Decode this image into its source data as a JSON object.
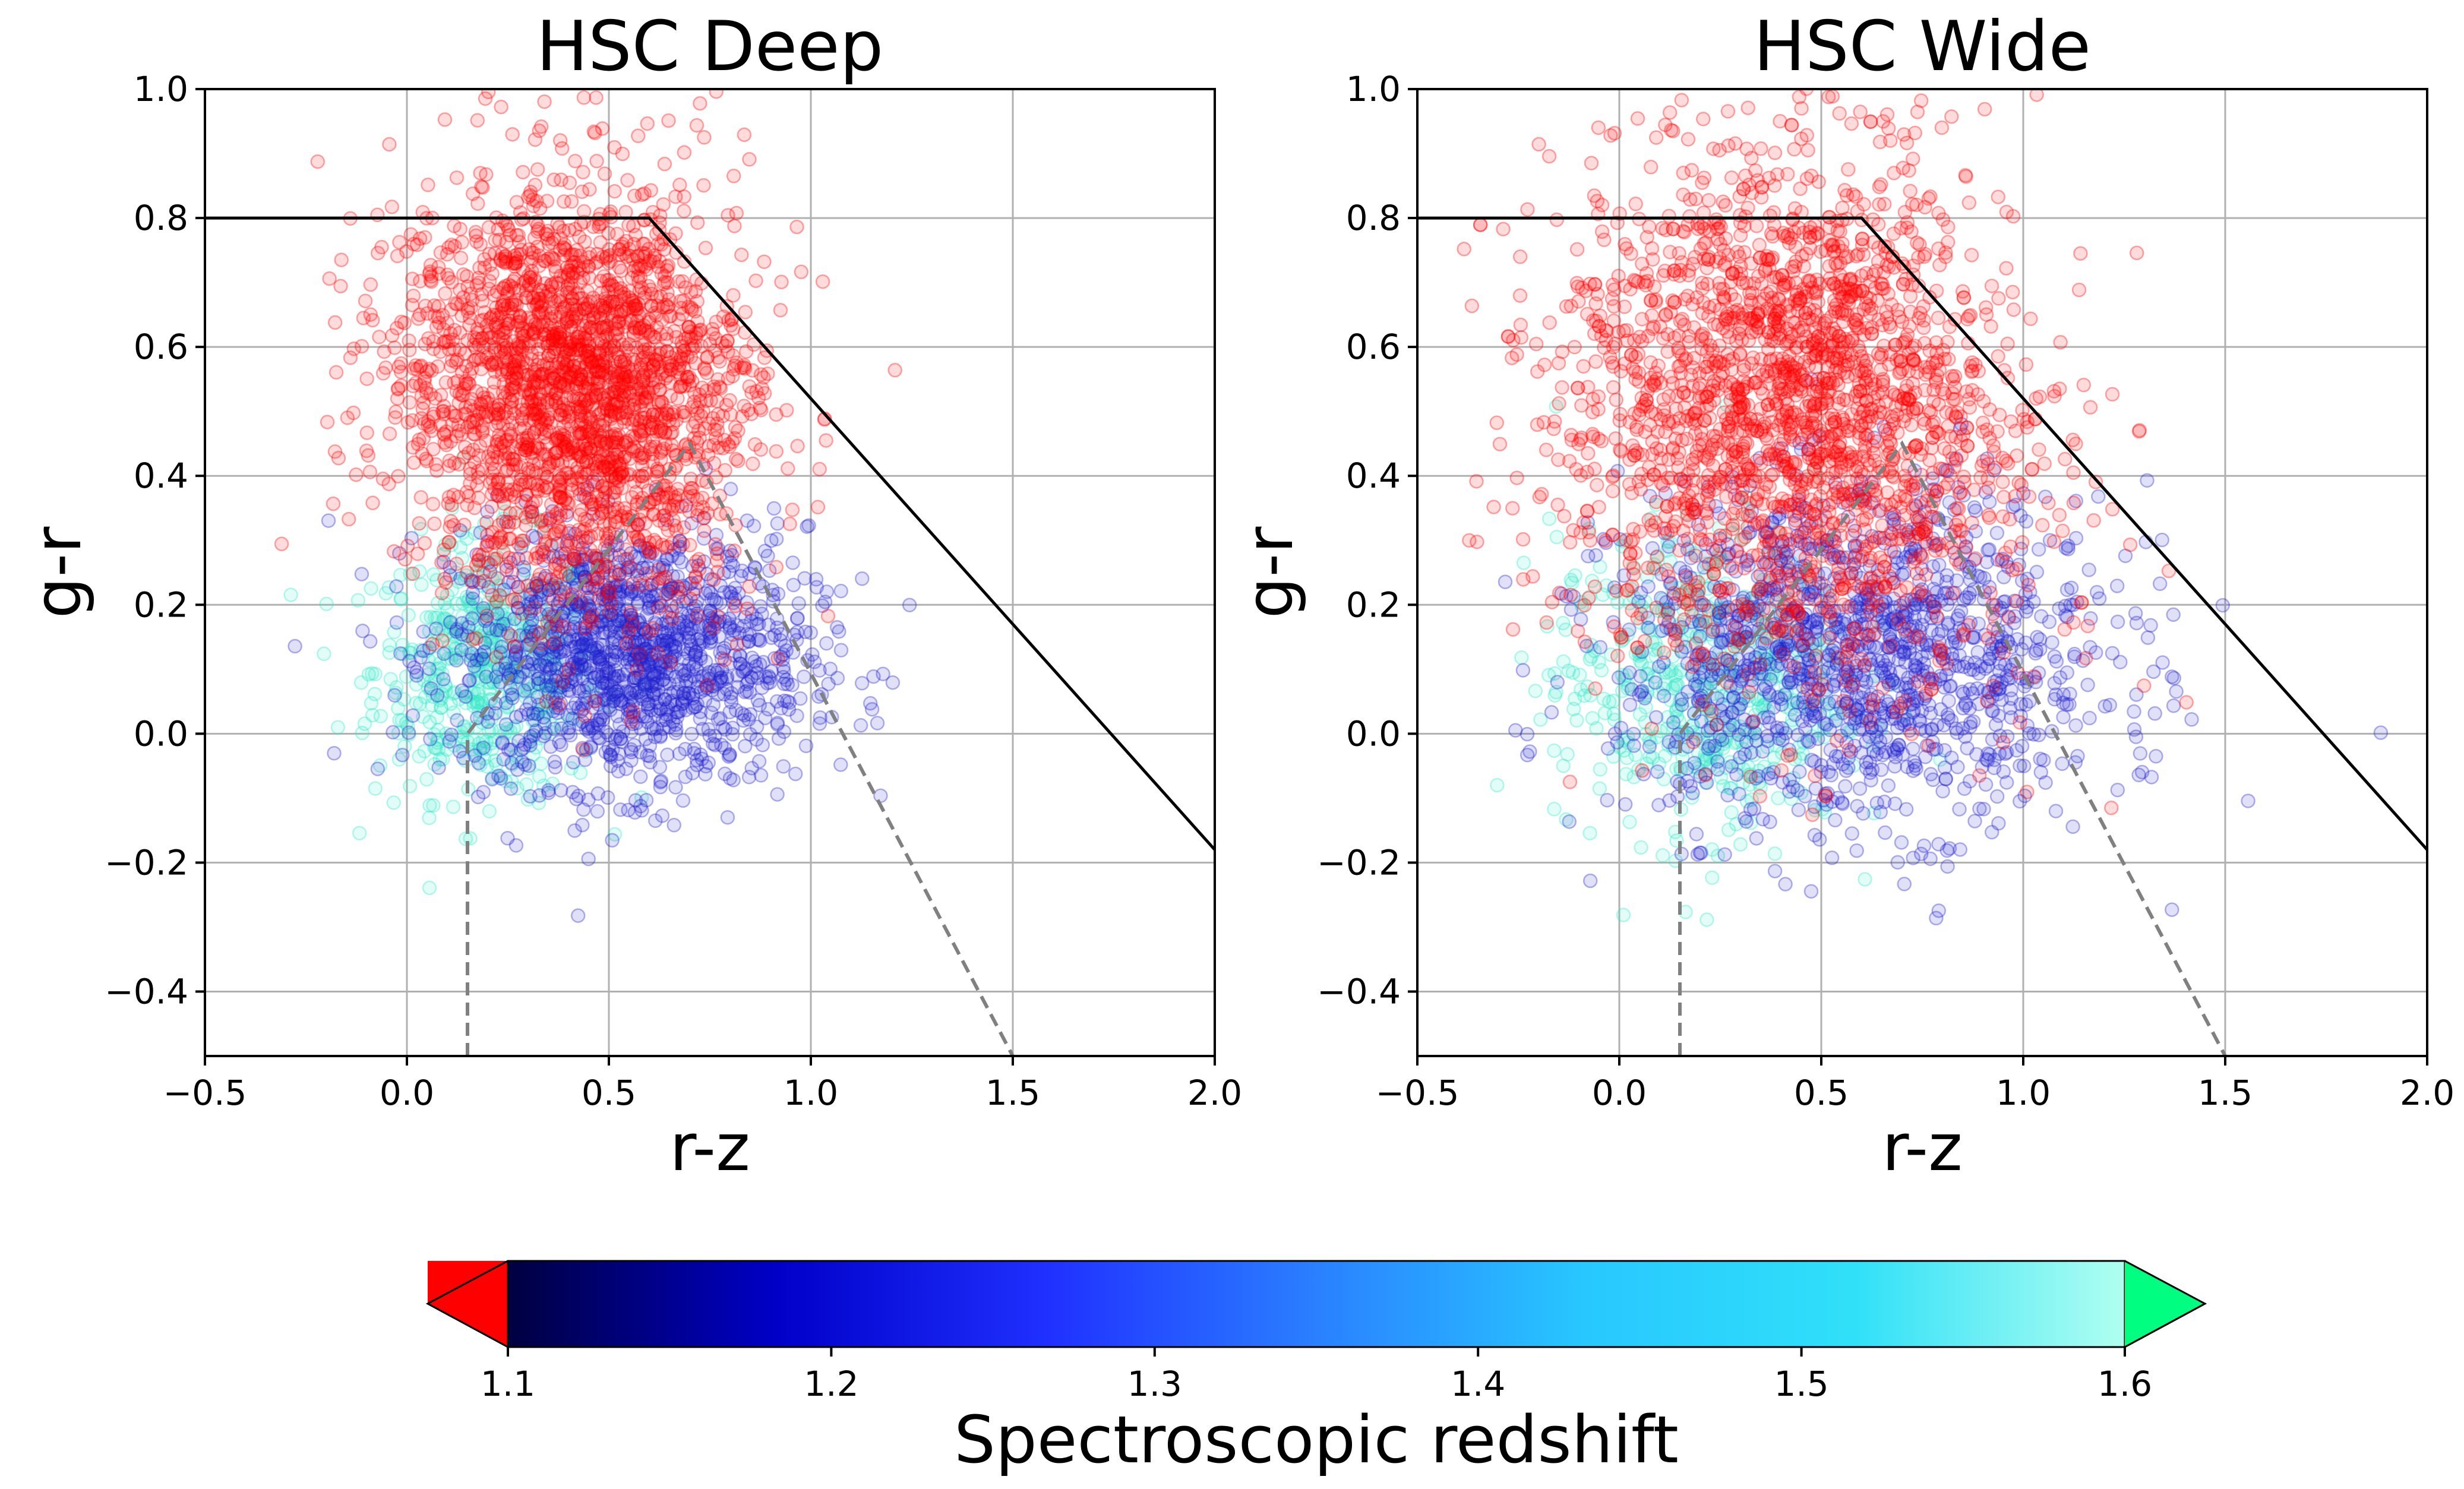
{
  "chart_data": [
    {
      "type": "scatter",
      "title": "HSC Deep",
      "xlabel": "r-z",
      "ylabel": "g-r",
      "xlim": [
        -0.5,
        2.0
      ],
      "ylim": [
        -0.5,
        1.0
      ],
      "xticks": [
        -0.5,
        0.0,
        0.5,
        1.0,
        1.5,
        2.0
      ],
      "xtick_labels": [
        "−0.5",
        "0.0",
        "0.5",
        "1.0",
        "1.5",
        "2.0"
      ],
      "yticks": [
        -0.4,
        -0.2,
        0.0,
        0.2,
        0.4,
        0.6,
        0.8,
        1.0
      ],
      "ytick_labels": [
        "−0.4",
        "−0.2",
        "0.0",
        "0.2",
        "0.4",
        "0.6",
        "0.8",
        "1.0"
      ],
      "grid": true,
      "selection_boundary": [
        [
          -0.5,
          0.8
        ],
        [
          0.6,
          0.8
        ],
        [
          2.0,
          -0.18
        ]
      ],
      "dashed_boundary": [
        [
          0.15,
          -0.5
        ],
        [
          0.15,
          0.0
        ],
        [
          0.7,
          0.45
        ],
        [
          1.5,
          -0.5
        ]
      ],
      "populations": [
        {
          "color": "#ff0000",
          "z_range": "<1.1",
          "center": [
            0.42,
            0.55
          ],
          "spread": [
            0.22,
            0.17
          ],
          "density": "high"
        },
        {
          "color": "#2020d0",
          "z_range": "1.1-1.4",
          "center": [
            0.55,
            0.12
          ],
          "spread": [
            0.22,
            0.1
          ],
          "density": "medium"
        },
        {
          "color": "#30e8c8",
          "z_range": "1.4-1.6",
          "center": [
            0.2,
            0.1
          ],
          "spread": [
            0.14,
            0.1
          ],
          "density": "low"
        }
      ]
    },
    {
      "type": "scatter",
      "title": "HSC Wide",
      "xlabel": "r-z",
      "ylabel": "g-r",
      "xlim": [
        -0.5,
        2.0
      ],
      "ylim": [
        -0.5,
        1.0
      ],
      "xticks": [
        -0.5,
        0.0,
        0.5,
        1.0,
        1.5,
        2.0
      ],
      "xtick_labels": [
        "−0.5",
        "0.0",
        "0.5",
        "1.0",
        "1.5",
        "2.0"
      ],
      "yticks": [
        -0.4,
        -0.2,
        0.0,
        0.2,
        0.4,
        0.6,
        0.8,
        1.0
      ],
      "ytick_labels": [
        "−0.4",
        "−0.2",
        "0.0",
        "0.2",
        "0.4",
        "0.6",
        "0.8",
        "1.0"
      ],
      "grid": true,
      "selection_boundary": [
        [
          -0.5,
          0.8
        ],
        [
          0.6,
          0.8
        ],
        [
          2.0,
          -0.18
        ]
      ],
      "dashed_boundary": [
        [
          0.15,
          -0.5
        ],
        [
          0.15,
          0.0
        ],
        [
          0.7,
          0.45
        ],
        [
          1.5,
          -0.5
        ]
      ],
      "populations": [
        {
          "color": "#ff0000",
          "z_range": "<1.1",
          "center": [
            0.45,
            0.55
          ],
          "spread": [
            0.3,
            0.22
          ],
          "density": "high"
        },
        {
          "color": "#2020d0",
          "z_range": "1.1-1.4",
          "center": [
            0.6,
            0.12
          ],
          "spread": [
            0.3,
            0.13
          ],
          "density": "medium"
        },
        {
          "color": "#30e8c8",
          "z_range": "1.4-1.6",
          "center": [
            0.2,
            0.08
          ],
          "spread": [
            0.18,
            0.12
          ],
          "density": "low"
        }
      ]
    }
  ],
  "colorbar": {
    "label": "Spectroscopic redshift",
    "range": [
      1.1,
      1.6
    ],
    "ticks": [
      "1.1",
      "1.2",
      "1.3",
      "1.4",
      "1.5",
      "1.6"
    ],
    "gradient": [
      "#000040",
      "#0000c8",
      "#2030ff",
      "#2a80ff",
      "#28c8ff",
      "#30e0f8",
      "#b0fff0"
    ],
    "under_color": "#ff0000",
    "over_color": "#00ff80"
  }
}
